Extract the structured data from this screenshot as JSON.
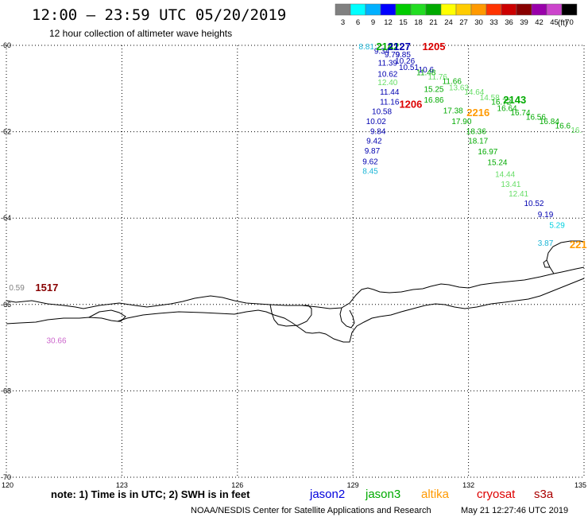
{
  "header": {
    "title": "12:00 – 23:59 UTC 05/20/2019",
    "subtitle": "12 hour collection of altimeter wave heights"
  },
  "legend_scale": {
    "unit_label": "(ft)",
    "bins": [
      {
        "label": "3",
        "color": "#808080"
      },
      {
        "label": "6",
        "color": "#00ffff"
      },
      {
        "label": "9",
        "color": "#00b0ff"
      },
      {
        "label": "12",
        "color": "#0000ff"
      },
      {
        "label": "15",
        "color": "#00cc00"
      },
      {
        "label": "18",
        "color": "#22dd22"
      },
      {
        "label": "21",
        "color": "#00aa00"
      },
      {
        "label": "24",
        "color": "#ffff00"
      },
      {
        "label": "27",
        "color": "#ffcc00"
      },
      {
        "label": "30",
        "color": "#ff9900"
      },
      {
        "label": "33",
        "color": "#ff3300"
      },
      {
        "label": "36",
        "color": "#cc0000"
      },
      {
        "label": "39",
        "color": "#880000"
      },
      {
        "label": "42",
        "color": "#9900aa"
      },
      {
        "label": "45",
        "color": "#cc44cc"
      },
      {
        "label": "70",
        "color": "#000000"
      }
    ]
  },
  "map": {
    "lon_range": [
      120,
      135
    ],
    "lat_range": [
      -70,
      -60
    ],
    "lon_ticks": [
      "120",
      "123",
      "126",
      "129",
      "132",
      "135"
    ],
    "lat_ticks": [
      "-60",
      "-62",
      "-64",
      "-66",
      "-68",
      "-70"
    ],
    "grid": "dotted"
  },
  "observations": [
    {
      "text": "8.81",
      "lon": 129.35,
      "lat": -60.02,
      "color": "#1ab5d6"
    },
    {
      "text": "9.34",
      "lon": 129.75,
      "lat": -60.12,
      "color": "#0000b0"
    },
    {
      "text": "9.79",
      "lon": 130.02,
      "lat": -60.2,
      "color": "#0000b0"
    },
    {
      "text": "9.85",
      "lon": 130.3,
      "lat": -60.2,
      "color": "#0000b0"
    },
    {
      "text": "10.26",
      "lon": 130.35,
      "lat": -60.35,
      "color": "#0000b0"
    },
    {
      "text": "11.39",
      "lon": 129.9,
      "lat": -60.4,
      "color": "#0000b0"
    },
    {
      "text": "10.51",
      "lon": 130.45,
      "lat": -60.5,
      "color": "#0000b0"
    },
    {
      "text": "10.62",
      "lon": 129.9,
      "lat": -60.65,
      "color": "#0000b0"
    },
    {
      "text": "10.6",
      "lon": 130.9,
      "lat": -60.55,
      "color": "#0000b0"
    },
    {
      "text": "11.48",
      "lon": 130.9,
      "lat": -60.62,
      "color": "#00aa00"
    },
    {
      "text": "12.40",
      "lon": 129.9,
      "lat": -60.85,
      "color": "#66dd66"
    },
    {
      "text": "11.76",
      "lon": 131.2,
      "lat": -60.72,
      "color": "#66dd66"
    },
    {
      "text": "11.66",
      "lon": 131.57,
      "lat": -60.82,
      "color": "#00aa00"
    },
    {
      "text": "15.25",
      "lon": 131.1,
      "lat": -61.0,
      "color": "#00aa00"
    },
    {
      "text": "13.63",
      "lon": 131.75,
      "lat": -60.97,
      "color": "#66dd66"
    },
    {
      "text": "14.64",
      "lon": 132.15,
      "lat": -61.07,
      "color": "#66dd66"
    },
    {
      "text": "11.44",
      "lon": 129.95,
      "lat": -61.07,
      "color": "#0000b0"
    },
    {
      "text": "14.58",
      "lon": 132.55,
      "lat": -61.2,
      "color": "#66dd66"
    },
    {
      "text": "16.86",
      "lon": 131.1,
      "lat": -61.25,
      "color": "#00aa00"
    },
    {
      "text": "16.72",
      "lon": 132.85,
      "lat": -61.3,
      "color": "#00aa00"
    },
    {
      "text": "11.16",
      "lon": 129.95,
      "lat": -61.3,
      "color": "#0000b0"
    },
    {
      "text": "16.64",
      "lon": 133.0,
      "lat": -61.45,
      "color": "#00aa00"
    },
    {
      "text": "17.38",
      "lon": 131.6,
      "lat": -61.5,
      "color": "#00aa00"
    },
    {
      "text": "16.74",
      "lon": 133.35,
      "lat": -61.55,
      "color": "#00aa00"
    },
    {
      "text": "10.58",
      "lon": 129.75,
      "lat": -61.52,
      "color": "#0000b0"
    },
    {
      "text": "16.56",
      "lon": 133.75,
      "lat": -61.65,
      "color": "#00aa00"
    },
    {
      "text": "17.90",
      "lon": 131.82,
      "lat": -61.75,
      "color": "#00aa00"
    },
    {
      "text": "16.84",
      "lon": 134.1,
      "lat": -61.75,
      "color": "#00aa00"
    },
    {
      "text": "10.02",
      "lon": 129.6,
      "lat": -61.75,
      "color": "#0000b0"
    },
    {
      "text": "16.6",
      "lon": 134.45,
      "lat": -61.85,
      "color": "#00aa00"
    },
    {
      "text": "16.",
      "lon": 134.8,
      "lat": -61.95,
      "color": "#66dd66"
    },
    {
      "text": "18.36",
      "lon": 132.2,
      "lat": -61.98,
      "color": "#00aa00"
    },
    {
      "text": "9.84",
      "lon": 129.65,
      "lat": -61.98,
      "color": "#0000b0"
    },
    {
      "text": "18.17",
      "lon": 132.25,
      "lat": -62.2,
      "color": "#00aa00"
    },
    {
      "text": "9.42",
      "lon": 129.55,
      "lat": -62.2,
      "color": "#0000b0"
    },
    {
      "text": "16.97",
      "lon": 132.5,
      "lat": -62.45,
      "color": "#00aa00"
    },
    {
      "text": "9.87",
      "lon": 129.5,
      "lat": -62.43,
      "color": "#0000b0"
    },
    {
      "text": "15.24",
      "lon": 132.75,
      "lat": -62.7,
      "color": "#00aa00"
    },
    {
      "text": "9.62",
      "lon": 129.45,
      "lat": -62.68,
      "color": "#0000b0"
    },
    {
      "text": "8.45",
      "lon": 129.45,
      "lat": -62.9,
      "color": "#1ab5d6"
    },
    {
      "text": "14.44",
      "lon": 132.95,
      "lat": -62.97,
      "color": "#66dd66"
    },
    {
      "text": "13.41",
      "lon": 133.1,
      "lat": -63.2,
      "color": "#66dd66"
    },
    {
      "text": "12.41",
      "lon": 133.3,
      "lat": -63.43,
      "color": "#66dd66"
    },
    {
      "text": "10.52",
      "lon": 133.7,
      "lat": -63.65,
      "color": "#0000b0"
    },
    {
      "text": "9.19",
      "lon": 134.0,
      "lat": -63.9,
      "color": "#0000b0"
    },
    {
      "text": "5.29",
      "lon": 134.3,
      "lat": -64.15,
      "color": "#00d0e0"
    },
    {
      "text": "3.87",
      "lon": 134.0,
      "lat": -64.57,
      "color": "#1ab5d6"
    },
    {
      "text": "0.59",
      "lon": 120.27,
      "lat": -65.6,
      "color": "#808080"
    },
    {
      "text": "30.66",
      "lon": 121.3,
      "lat": -66.82,
      "color": "#cc66cc"
    }
  ],
  "pass_labels": [
    {
      "text": "2142",
      "lon": 129.9,
      "lat": -60.02,
      "color": "#00aa00"
    },
    {
      "text": "2127",
      "lon": 130.2,
      "lat": -60.02,
      "color": "#0000b0"
    },
    {
      "text": "1205",
      "lon": 131.1,
      "lat": -60.02,
      "color": "#dd0000"
    },
    {
      "text": "1206",
      "lon": 130.5,
      "lat": -61.35,
      "color": "#dd0000"
    },
    {
      "text": "2216",
      "lon": 132.25,
      "lat": -61.55,
      "color": "#ff9900"
    },
    {
      "text": "2143",
      "lon": 133.2,
      "lat": -61.25,
      "color": "#00aa00"
    },
    {
      "text": "221",
      "lon": 134.85,
      "lat": -64.6,
      "color": "#ff9900"
    },
    {
      "text": "1517",
      "lon": 121.05,
      "lat": -65.6,
      "color": "#880000"
    }
  ],
  "footer": {
    "note": "note: 1) Time is in UTC; 2) SWH is in feet",
    "satellites": [
      {
        "name": "jason2",
        "color": "#0000dd"
      },
      {
        "name": "jason3",
        "color": "#00aa00"
      },
      {
        "name": "altika",
        "color": "#ff9900"
      },
      {
        "name": "cryosat",
        "color": "#dd0000"
      },
      {
        "name": "s3a",
        "color": "#aa0000"
      }
    ],
    "credit": "NOAA/NESDIS Center for Satellite Applications and Research",
    "timestamp": "May 21 12:27:46 UTC 2019"
  }
}
